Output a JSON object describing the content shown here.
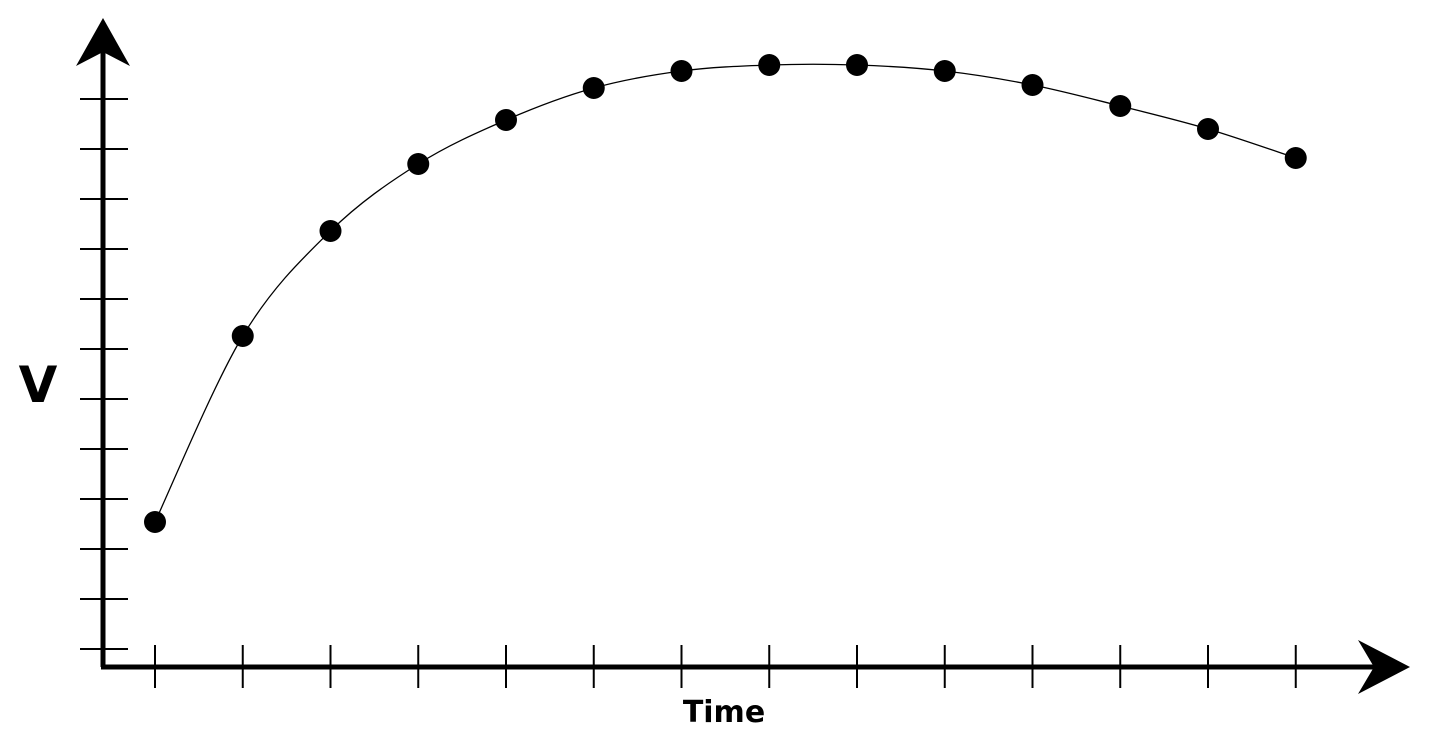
{
  "chart_data": {
    "type": "scatter",
    "title": "",
    "xlabel": "Time",
    "ylabel": "V",
    "x_ticks": 14,
    "y_ticks": 12,
    "tick_labels_shown": false,
    "grid": false,
    "fit_curve": true,
    "x": [
      1,
      2,
      3,
      4,
      5,
      6,
      7,
      8,
      9,
      10,
      11,
      12,
      13,
      14
    ],
    "y": [
      3.54,
      7.26,
      9.36,
      10.7,
      11.58,
      12.22,
      12.56,
      12.68,
      12.68,
      12.56,
      12.28,
      11.86,
      11.4,
      10.82
    ],
    "point_color": "#000000",
    "line_color": "#000000"
  }
}
